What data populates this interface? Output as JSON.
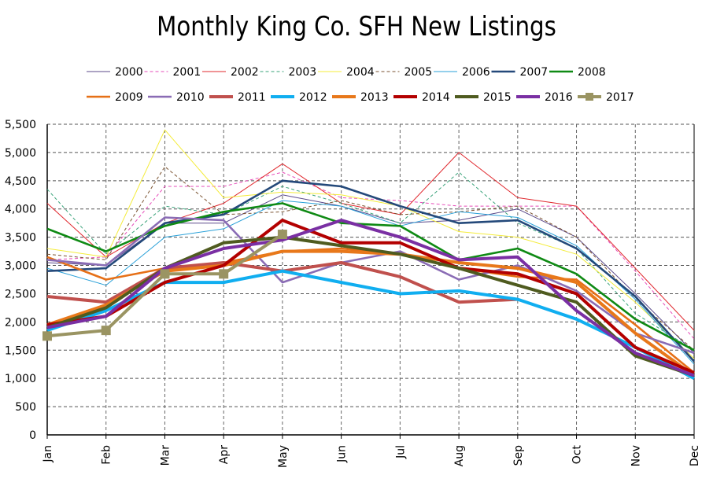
{
  "chart_data": {
    "type": "line",
    "title": "Monthly King Co. SFH New Listings",
    "xlabel": "",
    "ylabel": "",
    "categories": [
      "Jan",
      "Feb",
      "Mar",
      "Apr",
      "May",
      "Jun",
      "Jul",
      "Aug",
      "Sep",
      "Oct",
      "Nov",
      "Dec"
    ],
    "ylim": [
      0,
      5500
    ],
    "yticks": [
      "0",
      "500",
      "1,000",
      "1,500",
      "2,000",
      "2,500",
      "3,000",
      "3,500",
      "4,000",
      "4,500",
      "5,000",
      "5,500"
    ],
    "grid": true,
    "legend_position": "top",
    "series": [
      {
        "name": "2000",
        "color": "#5b4a8a",
        "style": "thin",
        "values": [
          3050,
          3000,
          3750,
          3750,
          4250,
          4050,
          3750,
          3800,
          4000,
          3500,
          2500,
          1450
        ]
      },
      {
        "name": "2001",
        "color": "#e64bb9",
        "style": "thin-dashed",
        "values": [
          3100,
          3150,
          4400,
          4400,
          4650,
          4200,
          4150,
          4050,
          4050,
          4050,
          2900,
          1700
        ]
      },
      {
        "name": "2002",
        "color": "#e0282e",
        "style": "thin",
        "values": [
          4100,
          3150,
          3750,
          4100,
          4800,
          4100,
          3900,
          5000,
          4200,
          4050,
          2950,
          1850
        ]
      },
      {
        "name": "2003",
        "color": "#3aa37a",
        "style": "thin-dashed",
        "values": [
          4350,
          3200,
          4050,
          3900,
          4400,
          4100,
          3750,
          4650,
          3750,
          3300,
          2150,
          1500
        ]
      },
      {
        "name": "2004",
        "color": "#f4ec3a",
        "style": "thin",
        "values": [
          3300,
          3150,
          5400,
          4200,
          4300,
          4250,
          4050,
          3600,
          3500,
          3200,
          2350,
          1350
        ]
      },
      {
        "name": "2005",
        "color": "#7a5230",
        "style": "thin-dashed",
        "values": [
          3200,
          3100,
          4750,
          3900,
          3950,
          4150,
          3900,
          3950,
          4050,
          3500,
          2400,
          1500
        ]
      },
      {
        "name": "2006",
        "color": "#29a0d8",
        "style": "thin",
        "values": [
          2950,
          2650,
          3500,
          3650,
          4150,
          4050,
          3700,
          3950,
          3850,
          3350,
          2400,
          1250
        ]
      },
      {
        "name": "2007",
        "color": "#24497a",
        "style": "medium",
        "values": [
          2900,
          2950,
          3750,
          3900,
          4500,
          4400,
          4050,
          3750,
          3800,
          3300,
          2450,
          1300
        ]
      },
      {
        "name": "2008",
        "color": "#0f8a14",
        "style": "medium",
        "values": [
          3650,
          3250,
          3700,
          3950,
          4100,
          3750,
          3700,
          3100,
          3300,
          2850,
          2050,
          1500
        ]
      },
      {
        "name": "2009",
        "color": "#e67017",
        "style": "medium",
        "values": [
          3150,
          2750,
          2950,
          3050,
          3250,
          3300,
          3200,
          2950,
          2800,
          2750,
          1950,
          1100
        ]
      },
      {
        "name": "2010",
        "color": "#8a6cb5",
        "style": "medium",
        "values": [
          3100,
          3000,
          3850,
          3800,
          2700,
          3050,
          3250,
          2750,
          3000,
          2550,
          1800,
          1450
        ]
      },
      {
        "name": "2011",
        "color": "#c0504d",
        "style": "thick",
        "values": [
          2450,
          2350,
          2950,
          3050,
          2900,
          3050,
          2800,
          2350,
          2400,
          null,
          null,
          null
        ]
      },
      {
        "name": "2012",
        "color": "#10aef0",
        "style": "thick",
        "values": [
          1850,
          2200,
          2700,
          2700,
          2900,
          2700,
          2500,
          2550,
          2400,
          2050,
          1550,
          1000
        ]
      },
      {
        "name": "2013",
        "color": "#e8781a",
        "style": "thick",
        "values": [
          1950,
          2300,
          2900,
          3000,
          3250,
          3250,
          3200,
          3050,
          2950,
          2700,
          1800,
          1050
        ]
      },
      {
        "name": "2014",
        "color": "#b30000",
        "style": "thick",
        "values": [
          1950,
          2100,
          2700,
          3000,
          3800,
          3400,
          3400,
          2950,
          2850,
          2500,
          1550,
          1100
        ]
      },
      {
        "name": "2015",
        "color": "#4f5b1f",
        "style": "thick",
        "values": [
          1900,
          2250,
          2950,
          3400,
          3500,
          3350,
          3200,
          2950,
          2650,
          2350,
          1400,
          1050
        ]
      },
      {
        "name": "2016",
        "color": "#7a2fa3",
        "style": "thick",
        "values": [
          1900,
          2100,
          2950,
          3300,
          3450,
          3800,
          3500,
          3100,
          3150,
          2200,
          1450,
          1050
        ]
      },
      {
        "name": "2017",
        "color": "#9a9462",
        "style": "thick-dashed-square",
        "values": [
          1750,
          1850,
          2850,
          2850,
          3550,
          null,
          null,
          null,
          null,
          null,
          null,
          null
        ]
      }
    ]
  }
}
